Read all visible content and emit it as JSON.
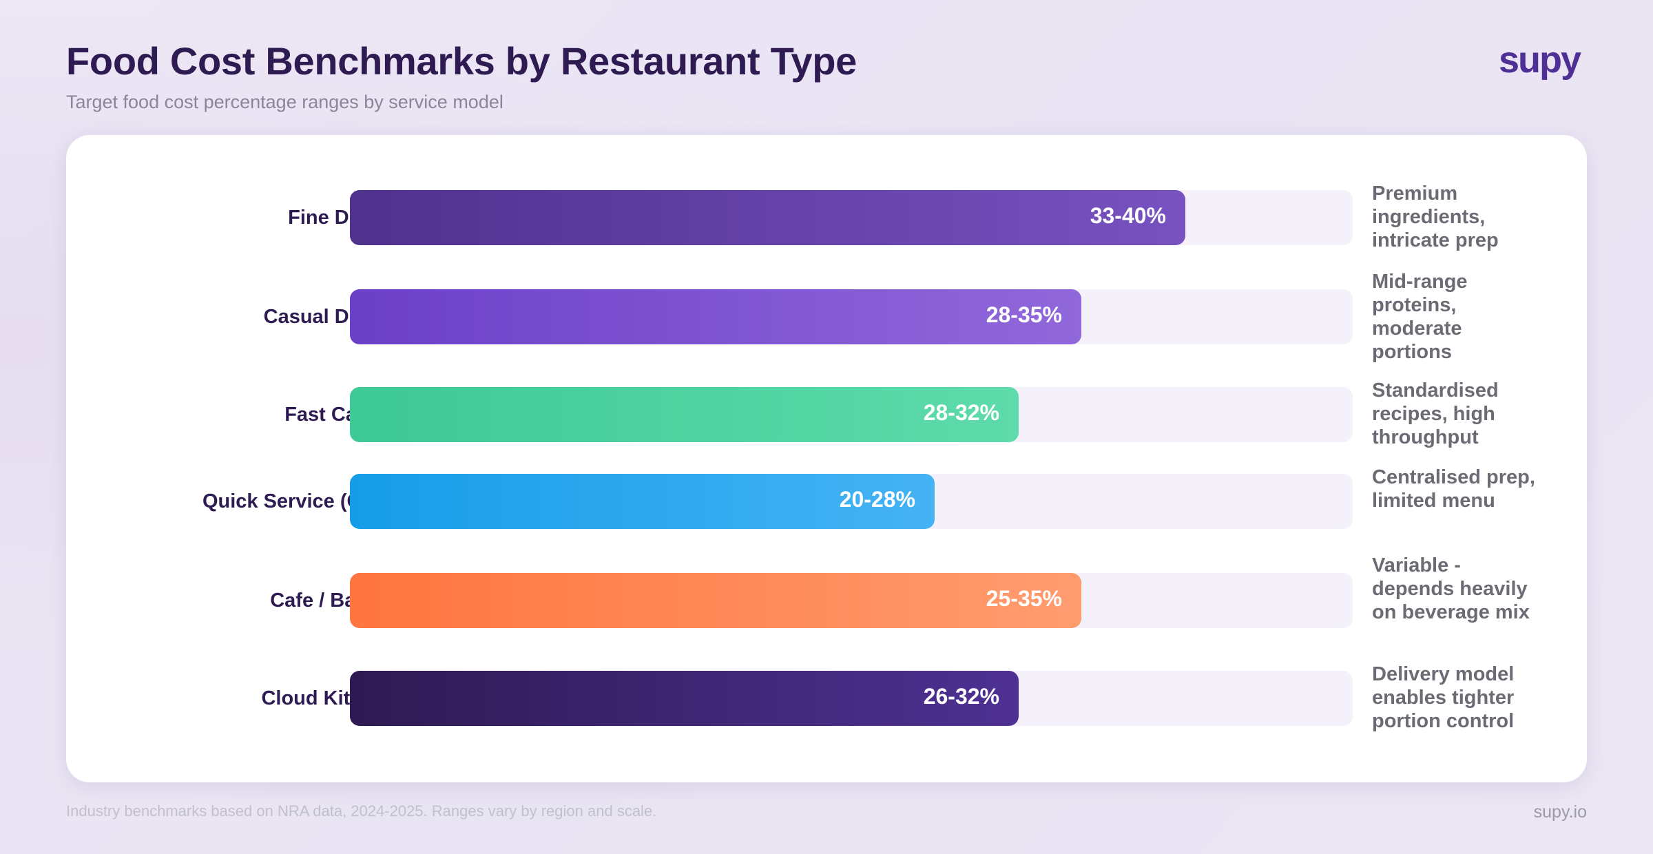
{
  "header": {
    "title": "Food Cost Benchmarks by Restaurant Type",
    "subtitle": "Target food cost percentage ranges by service model",
    "logo": "supy"
  },
  "footer": {
    "source": "Industry benchmarks based on NRA data, 2024-2025. Ranges vary by region and scale.",
    "site": "supy.io"
  },
  "chart_data": {
    "type": "bar",
    "orientation": "horizontal",
    "title": "Food Cost Benchmarks by Restaurant Type",
    "subtitle": "Target food cost percentage ranges by service model",
    "unit": "%",
    "xlim": [
      0,
      48
    ],
    "grid": false,
    "categories": [
      "Fine Dining",
      "Casual Dining",
      "Fast Casual",
      "Quick Service (QSR)",
      "Cafe / Bakery",
      "Cloud Kitchen"
    ],
    "series": [
      {
        "ranges": [
          [
            33,
            40
          ],
          [
            28,
            35
          ],
          [
            28,
            32
          ],
          [
            20,
            28
          ],
          [
            25,
            35
          ],
          [
            26,
            32
          ]
        ],
        "labels": [
          "33-40%",
          "28-35%",
          "28-32%",
          "20-28%",
          "25-35%",
          "26-32%"
        ],
        "values": [
          40,
          35,
          32,
          28,
          35,
          32
        ]
      }
    ],
    "annotations": [
      "Premium ingredients, intricate prep",
      "Mid-range proteins, moderate portions",
      "Standardised recipes, high throughput",
      "Centralised prep, limited menu",
      "Variable - depends heavily on beverage mix",
      "Delivery model enables tighter portion control"
    ],
    "colors": [
      [
        "#4f318e",
        "#7852c0"
      ],
      [
        "#6b40c8",
        "#9168da"
      ],
      [
        "#3ec996",
        "#5edbab"
      ],
      [
        "#169de8",
        "#45b3f4"
      ],
      [
        "#ff753f",
        "#ff9c6f"
      ],
      [
        "#2e1a52",
        "#4e3193"
      ]
    ]
  }
}
